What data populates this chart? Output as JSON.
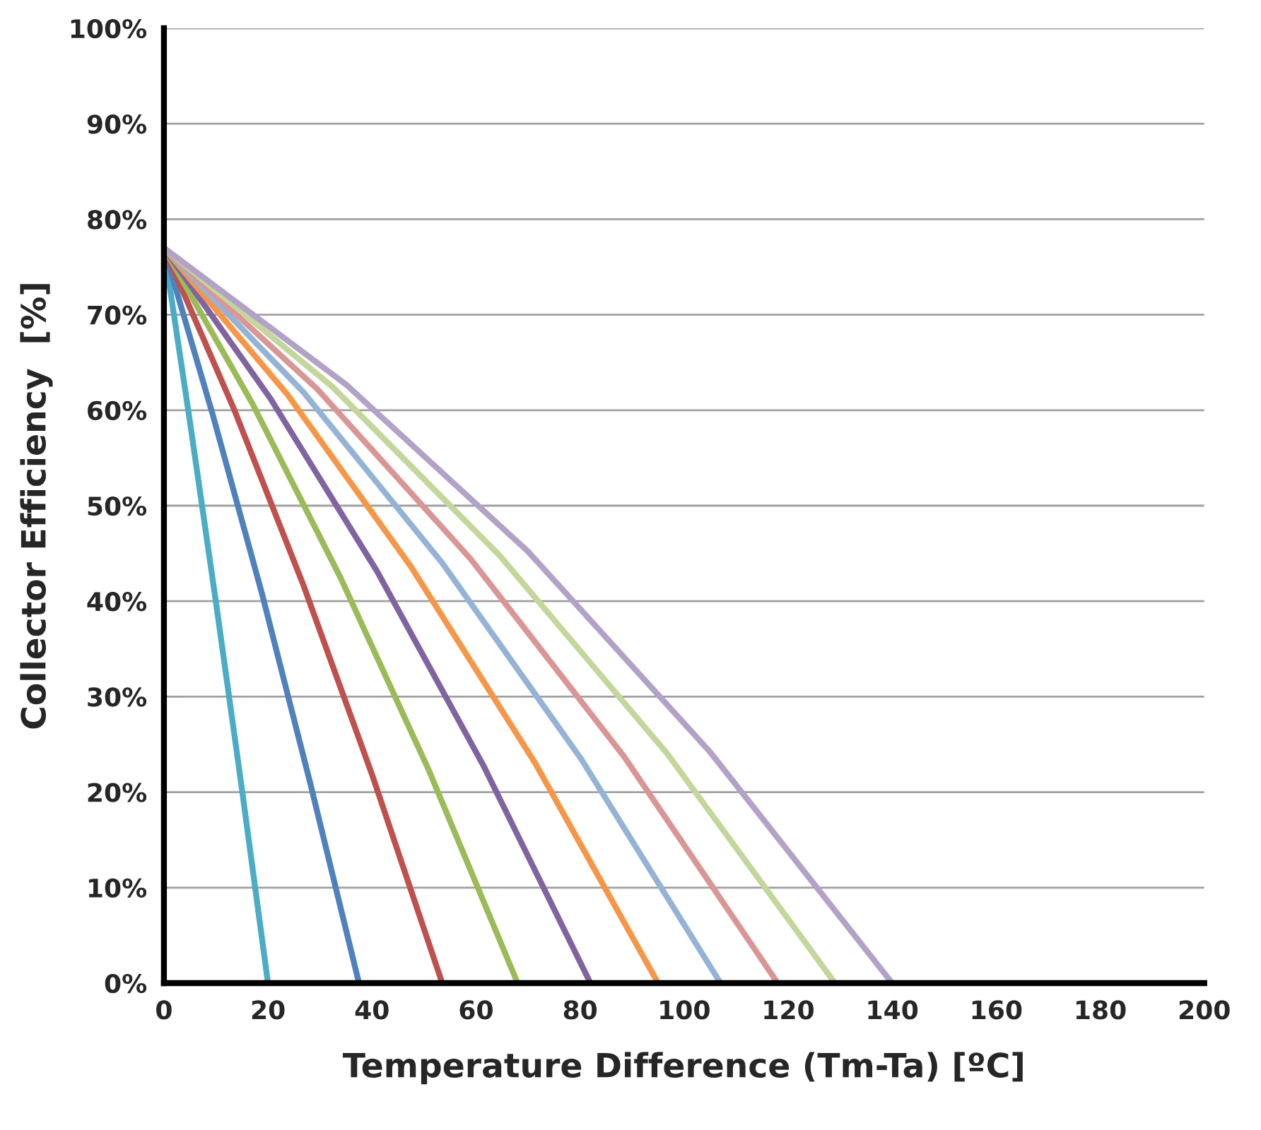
{
  "chart_data": {
    "type": "line",
    "xlabel": "Temperature Difference (Tm-Ta) [ºC]",
    "ylabel": "Collector Efficiency  [%]",
    "xlim": [
      0,
      200
    ],
    "xticks": [
      0,
      20,
      40,
      60,
      80,
      100,
      120,
      140,
      160,
      180,
      200
    ],
    "ylim": [
      0,
      100
    ],
    "yticks": [
      {
        "value": 0,
        "label": "0%"
      },
      {
        "value": 10,
        "label": "10%"
      },
      {
        "value": 20,
        "label": "20%"
      },
      {
        "value": 30,
        "label": "30%"
      },
      {
        "value": 40,
        "label": "40%"
      },
      {
        "value": 50,
        "label": "50%"
      },
      {
        "value": 60,
        "label": "60%"
      },
      {
        "value": 70,
        "label": "70%"
      },
      {
        "value": 80,
        "label": "80%"
      },
      {
        "value": 90,
        "label": "90%"
      },
      {
        "value": 100,
        "label": "100%"
      }
    ],
    "grid": "y",
    "marker": "none",
    "line_style": "solid",
    "series": [
      {
        "color": "#4bacc6",
        "x": [
          0,
          5,
          10,
          15,
          20
        ],
        "values": [
          77,
          58.8,
          39.9,
          20.3,
          0
        ]
      },
      {
        "color": "#4f81bd",
        "x": [
          0,
          9.4,
          18.8,
          28.1,
          37.5
        ],
        "values": [
          77,
          59.5,
          40.9,
          21.0,
          0
        ]
      },
      {
        "color": "#c0504d",
        "x": [
          0,
          13.4,
          26.8,
          40.1,
          53.5
        ],
        "values": [
          77,
          60.2,
          41.7,
          21.7,
          0
        ]
      },
      {
        "color": "#9bbb59",
        "x": [
          0,
          17,
          34,
          51,
          68
        ],
        "values": [
          77,
          60.7,
          42.4,
          22.2,
          0
        ]
      },
      {
        "color": "#8064a2",
        "x": [
          0,
          20.5,
          41,
          61.5,
          82
        ],
        "values": [
          77,
          61.2,
          43.1,
          22.7,
          0
        ]
      },
      {
        "color": "#f79646",
        "x": [
          0,
          23.8,
          47.5,
          71.3,
          95
        ],
        "values": [
          77,
          61.6,
          43.6,
          23.1,
          0
        ]
      },
      {
        "color": "#95b3d7",
        "x": [
          0,
          26.8,
          53.5,
          80.3,
          107
        ],
        "values": [
          77,
          61.9,
          44.0,
          23.4,
          0
        ]
      },
      {
        "color": "#d99694",
        "x": [
          0,
          29.5,
          59,
          88.5,
          118
        ],
        "values": [
          77,
          62.2,
          44.4,
          23.7,
          0
        ]
      },
      {
        "color": "#c3d69b",
        "x": [
          0,
          32.3,
          64.5,
          96.8,
          129
        ],
        "values": [
          77,
          62.5,
          44.8,
          24.0,
          0
        ]
      },
      {
        "color": "#b3a2c7",
        "x": [
          0,
          35,
          70,
          105,
          140
        ],
        "values": [
          77,
          62.7,
          45.2,
          24.2,
          0
        ]
      }
    ]
  }
}
